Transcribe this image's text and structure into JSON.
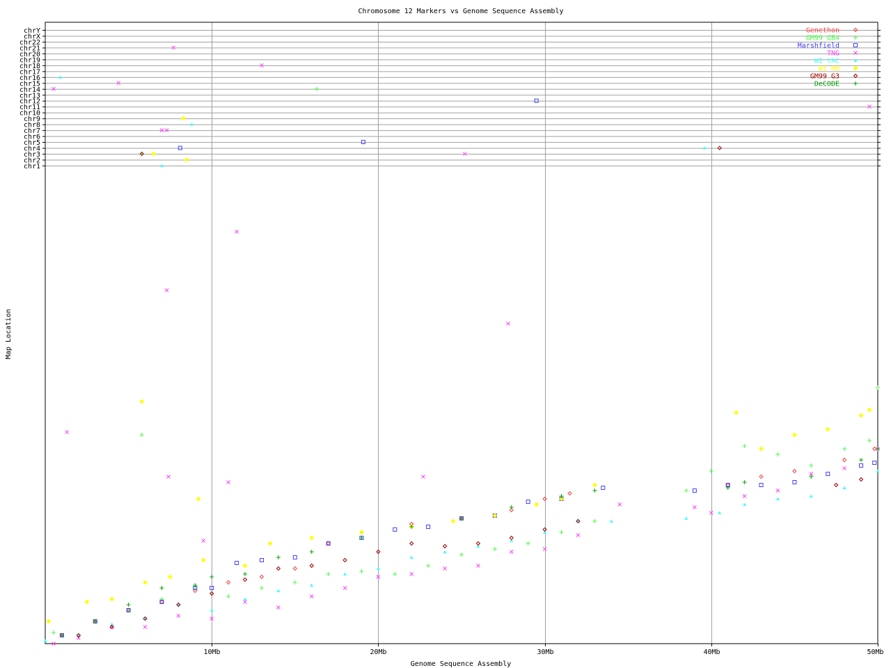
{
  "chart_data": {
    "type": "scatter",
    "title": "Chromosome 12 Markers vs Genome Sequence Assembly",
    "xlabel": "Genome Sequence Assembly",
    "ylabel": "Map Location",
    "xlim": [
      0,
      50
    ],
    "x_unit": "Mb",
    "x_ticks": [
      {
        "v": 10,
        "label": "10Mb"
      },
      {
        "v": 20,
        "label": "20Mb"
      },
      {
        "v": 30,
        "label": "30Mb"
      },
      {
        "v": 40,
        "label": "40Mb"
      },
      {
        "v": 50,
        "label": "50Mb"
      }
    ],
    "ylim": [
      0,
      170
    ],
    "grid": "vertical at x ticks; horizontal at chromosome rows",
    "legend_position": "top-right",
    "chromosomes": [
      "chrY",
      "chrX",
      "chr22",
      "chr21",
      "chr20",
      "chr19",
      "chr18",
      "chr17",
      "chr16",
      "chr15",
      "chr14",
      "chr13",
      "chr12",
      "chr11",
      "chr10",
      "chr9",
      "chr8",
      "chr7",
      "chr6",
      "chr5",
      "chr4",
      "chr3",
      "chr2",
      "chr1"
    ],
    "series": [
      {
        "name": "Genethon",
        "color": "#ff4040",
        "marker": "diamond",
        "points": [
          [
            1,
            3
          ],
          [
            3,
            8
          ],
          [
            5,
            12
          ],
          [
            7,
            15
          ],
          [
            9,
            19
          ],
          [
            11,
            22
          ],
          [
            13,
            24
          ],
          [
            15,
            27
          ],
          [
            17,
            36
          ],
          [
            19,
            40
          ],
          [
            22,
            43
          ],
          [
            25,
            45
          ],
          [
            28,
            48
          ],
          [
            30,
            52
          ],
          [
            31.5,
            54
          ],
          [
            41,
            57
          ],
          [
            43,
            60
          ],
          [
            45,
            62
          ],
          [
            48,
            66
          ],
          [
            49.8,
            70
          ]
        ],
        "off_chrom": []
      },
      {
        "name": "GM99 GB4",
        "color": "#40ff40",
        "marker": "plus",
        "points": [
          [
            0.5,
            4
          ],
          [
            3,
            8
          ],
          [
            5,
            12
          ],
          [
            5.8,
            75
          ],
          [
            7,
            16
          ],
          [
            9,
            20
          ],
          [
            11,
            17
          ],
          [
            13,
            20
          ],
          [
            15,
            22
          ],
          [
            17,
            25
          ],
          [
            19,
            26
          ],
          [
            21,
            25
          ],
          [
            23,
            28
          ],
          [
            25,
            32
          ],
          [
            27,
            34
          ],
          [
            29,
            36
          ],
          [
            31,
            40
          ],
          [
            33,
            44
          ],
          [
            38.5,
            55
          ],
          [
            40,
            62
          ],
          [
            42,
            71
          ],
          [
            44,
            68
          ],
          [
            46,
            64
          ],
          [
            48,
            70
          ],
          [
            49.5,
            73
          ],
          [
            50,
            92
          ]
        ],
        "off_chrom": [
          [
            16.3,
            "chr14"
          ],
          [
            5.8,
            "chr3"
          ]
        ]
      },
      {
        "name": "Marshfield",
        "color": "#4040ff",
        "marker": "square",
        "points": [
          [
            1,
            3
          ],
          [
            3,
            8
          ],
          [
            5,
            12
          ],
          [
            7,
            15
          ],
          [
            9,
            20
          ],
          [
            10,
            20
          ],
          [
            11.5,
            29
          ],
          [
            13,
            30
          ],
          [
            15,
            31
          ],
          [
            17,
            36
          ],
          [
            19,
            38
          ],
          [
            21,
            41
          ],
          [
            23,
            42
          ],
          [
            25,
            45
          ],
          [
            27,
            46
          ],
          [
            29,
            51
          ],
          [
            31,
            52
          ],
          [
            33.5,
            56
          ],
          [
            39,
            55
          ],
          [
            41,
            57
          ],
          [
            43,
            57
          ],
          [
            45,
            58
          ],
          [
            47,
            61
          ],
          [
            49,
            64
          ],
          [
            49.8,
            65
          ]
        ],
        "off_chrom": [
          [
            8.1,
            "chr4"
          ],
          [
            19.1,
            "chr5"
          ],
          [
            29.5,
            "chr12"
          ]
        ]
      },
      {
        "name": "TNG",
        "color": "#ff40ff",
        "marker": "x",
        "points": [
          [
            0.5,
            0
          ],
          [
            1.3,
            76
          ],
          [
            2,
            2
          ],
          [
            4,
            6
          ],
          [
            6,
            6
          ],
          [
            7.3,
            127
          ],
          [
            7.4,
            60
          ],
          [
            8,
            10
          ],
          [
            9.5,
            37
          ],
          [
            10,
            9
          ],
          [
            11,
            58
          ],
          [
            11.5,
            148
          ],
          [
            12,
            15
          ],
          [
            14,
            13
          ],
          [
            16,
            17
          ],
          [
            18,
            20
          ],
          [
            20,
            24
          ],
          [
            22,
            25
          ],
          [
            22.7,
            60
          ],
          [
            24,
            27
          ],
          [
            26,
            28
          ],
          [
            27.8,
            115
          ],
          [
            28,
            33
          ],
          [
            30,
            34
          ],
          [
            32,
            39
          ],
          [
            34.5,
            50
          ],
          [
            39,
            49
          ],
          [
            40,
            47
          ],
          [
            42,
            53
          ],
          [
            44,
            55
          ],
          [
            46,
            61
          ],
          [
            48,
            63
          ],
          [
            50,
            70
          ]
        ],
        "off_chrom": [
          [
            7.7,
            "chr21"
          ],
          [
            13,
            "chr18"
          ],
          [
            4.4,
            "chr15"
          ],
          [
            0.5,
            "chr14"
          ],
          [
            7,
            "chr7"
          ],
          [
            7.3,
            "chr7"
          ],
          [
            25.2,
            "chr3"
          ],
          [
            49.5,
            "chr11"
          ]
        ]
      },
      {
        "name": "WI YAC",
        "color": "#40ffff",
        "marker": "triangle",
        "points": [
          [
            0,
            1
          ],
          [
            2,
            3
          ],
          [
            4,
            7
          ],
          [
            6,
            9
          ],
          [
            8,
            14
          ],
          [
            10,
            12
          ],
          [
            12,
            16
          ],
          [
            14,
            19
          ],
          [
            16,
            21
          ],
          [
            18,
            25
          ],
          [
            20,
            27
          ],
          [
            22,
            31
          ],
          [
            24,
            33
          ],
          [
            26,
            35
          ],
          [
            28,
            37
          ],
          [
            30,
            40
          ],
          [
            32,
            44
          ],
          [
            34,
            44
          ],
          [
            38.5,
            45
          ],
          [
            40.5,
            47
          ],
          [
            42,
            50
          ],
          [
            44,
            52
          ],
          [
            46,
            53
          ],
          [
            48,
            56
          ],
          [
            50,
            62
          ]
        ],
        "off_chrom": [
          [
            0.9,
            "chr16"
          ],
          [
            8.8,
            "chr8"
          ],
          [
            7,
            "chr1"
          ],
          [
            39.6,
            "chr4"
          ]
        ]
      },
      {
        "name": "WI RH",
        "color": "#ffff00",
        "marker": "asterisk",
        "points": [
          [
            0.2,
            8
          ],
          [
            2.5,
            15
          ],
          [
            4,
            16
          ],
          [
            5.8,
            87
          ],
          [
            6,
            22
          ],
          [
            7.5,
            24
          ],
          [
            9.2,
            52
          ],
          [
            9.5,
            30
          ],
          [
            12,
            28
          ],
          [
            13.5,
            36
          ],
          [
            16,
            38
          ],
          [
            19,
            40
          ],
          [
            22,
            42
          ],
          [
            24.5,
            44
          ],
          [
            27,
            46
          ],
          [
            29.5,
            50
          ],
          [
            31,
            52
          ],
          [
            33,
            57
          ],
          [
            41.5,
            83
          ],
          [
            43,
            70
          ],
          [
            45,
            75
          ],
          [
            47,
            77
          ],
          [
            49,
            82
          ],
          [
            49.5,
            84
          ]
        ],
        "off_chrom": [
          [
            8.3,
            "chr9"
          ],
          [
            8.5,
            "chr2"
          ],
          [
            6.5,
            "chr3"
          ]
        ]
      },
      {
        "name": "GM99 G3",
        "color": "#a00000",
        "marker": "diamond",
        "points": [
          [
            2,
            3
          ],
          [
            4,
            6
          ],
          [
            6,
            9
          ],
          [
            8,
            14
          ],
          [
            10,
            18
          ],
          [
            12,
            23
          ],
          [
            14,
            27
          ],
          [
            16,
            28
          ],
          [
            18,
            30
          ],
          [
            20,
            33
          ],
          [
            22,
            36
          ],
          [
            24,
            35
          ],
          [
            26,
            36
          ],
          [
            28,
            38
          ],
          [
            30,
            41
          ],
          [
            32,
            44
          ],
          [
            47.5,
            57
          ],
          [
            49,
            59
          ]
        ],
        "off_chrom": [
          [
            5.8,
            "chr3"
          ],
          [
            40.5,
            "chr4"
          ]
        ]
      },
      {
        "name": "DeCODE",
        "color": "#00a000",
        "marker": "plus",
        "points": [
          [
            1,
            3
          ],
          [
            3,
            8
          ],
          [
            5,
            14
          ],
          [
            7,
            20
          ],
          [
            9,
            21
          ],
          [
            10,
            24
          ],
          [
            12,
            25
          ],
          [
            14,
            31
          ],
          [
            16,
            33
          ],
          [
            19,
            38
          ],
          [
            22,
            42
          ],
          [
            25,
            45
          ],
          [
            28,
            49
          ],
          [
            31,
            53
          ],
          [
            33,
            55
          ],
          [
            41,
            56
          ],
          [
            42,
            58
          ],
          [
            46,
            60
          ],
          [
            49,
            66
          ],
          [
            50,
            70
          ]
        ],
        "off_chrom": []
      }
    ]
  }
}
